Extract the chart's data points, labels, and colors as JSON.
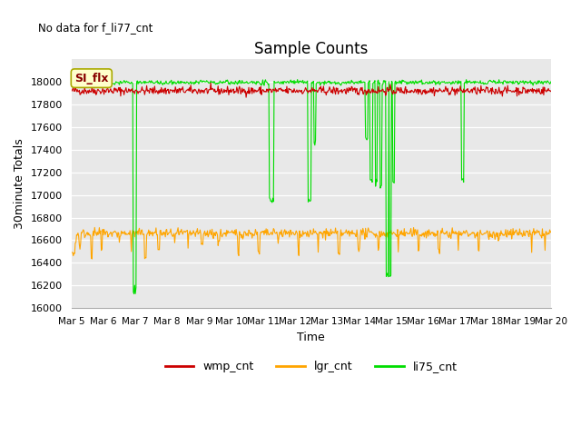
{
  "title": "Sample Counts",
  "subtitle": "No data for f_li77_cnt",
  "xlabel": "Time",
  "ylabel": "30minute Totals",
  "ylim": [
    16000,
    18200
  ],
  "yticks": [
    16000,
    16200,
    16400,
    16600,
    16800,
    17000,
    17200,
    17400,
    17600,
    17800,
    18000
  ],
  "x_tick_labels": [
    "Mar 5",
    "Mar 6",
    "Mar 7",
    "Mar 8",
    "Mar 9",
    "Mar 10",
    "Mar 11",
    "Mar 12",
    "Mar 13",
    "Mar 14",
    "Mar 15",
    "Mar 16",
    "Mar 17",
    "Mar 18",
    "Mar 19",
    "Mar 20"
  ],
  "wmp_color": "#cc0000",
  "lgr_color": "#ffa500",
  "li75_color": "#00dd00",
  "annotation_text": "SI_flx",
  "bg_color": "#e8e8e8",
  "legend_labels": [
    "wmp_cnt",
    "lgr_cnt",
    "li75_cnt"
  ],
  "legend_colors": [
    "#cc0000",
    "#ffa500",
    "#00dd00"
  ],
  "fig_width": 6.4,
  "fig_height": 4.8,
  "dpi": 100
}
